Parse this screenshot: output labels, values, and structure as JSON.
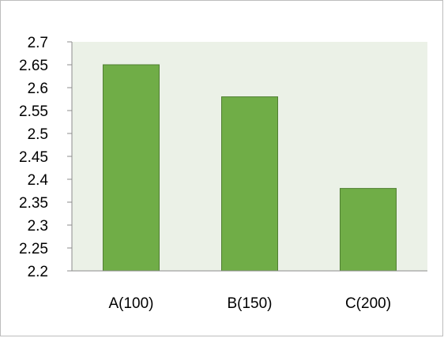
{
  "chart_data": {
    "type": "bar",
    "title": "",
    "xlabel": "",
    "ylabel": "",
    "categories": [
      "A(100)",
      "B(150)",
      "C(200)"
    ],
    "values": [
      2.65,
      2.58,
      2.38
    ],
    "ylim": [
      2.2,
      2.7
    ],
    "yticks": [
      "2.2",
      "2.25",
      "2.3",
      "2.35",
      "2.4",
      "2.45",
      "2.5",
      "2.55",
      "2.6",
      "2.65",
      "2.7"
    ],
    "grid": false,
    "legend": "none",
    "colors": {
      "bar_fill": "#70ad47",
      "bar_stroke": "#507e32",
      "plot_background": "#ebf1e7",
      "axis": "#8c8c8c"
    }
  }
}
